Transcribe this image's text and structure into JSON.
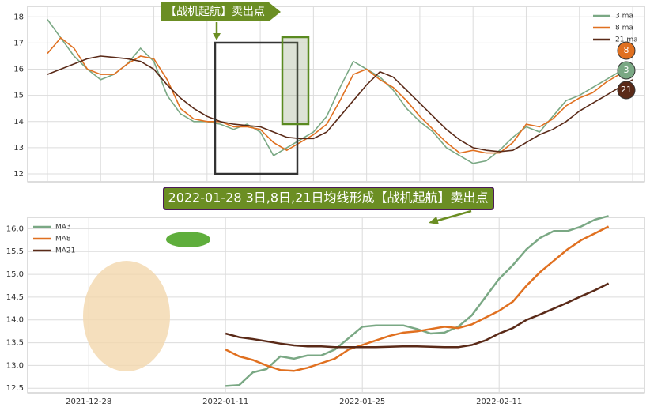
{
  "chart_data": [
    {
      "type": "line",
      "annotation": "【战机起航】卖出点",
      "badges": [
        "8",
        "3",
        "21"
      ],
      "categories": [
        null,
        null,
        null,
        null,
        null,
        null,
        null,
        null,
        null,
        null,
        null,
        null,
        null,
        null,
        null,
        null,
        null,
        null,
        null,
        null,
        null,
        null,
        null,
        null,
        null,
        null,
        null,
        null,
        null,
        null,
        null,
        null,
        null,
        null,
        null,
        null,
        null,
        null,
        null,
        null,
        null,
        null,
        null,
        null,
        null
      ],
      "series": [
        {
          "name": "3 ma",
          "color": "#7aa884",
          "values": [
            17.9,
            17.2,
            16.5,
            16.0,
            15.6,
            15.8,
            16.2,
            16.8,
            16.3,
            15.0,
            14.3,
            14.0,
            14.0,
            13.9,
            13.7,
            13.9,
            13.6,
            12.7,
            13.0,
            13.3,
            13.6,
            14.2,
            15.3,
            16.3,
            16.0,
            15.7,
            15.2,
            14.5,
            14.0,
            13.6,
            13.0,
            12.7,
            12.4,
            12.5,
            12.9,
            13.4,
            13.8,
            13.6,
            14.2,
            14.8,
            15.0,
            15.3,
            15.6,
            15.9,
            16.0
          ]
        },
        {
          "name": "8 ma",
          "color": "#e07020",
          "values": [
            16.6,
            17.2,
            16.8,
            16.0,
            15.8,
            15.8,
            16.2,
            16.5,
            16.4,
            15.6,
            14.5,
            14.1,
            14.0,
            14.0,
            13.8,
            13.8,
            13.7,
            13.2,
            12.9,
            13.2,
            13.5,
            13.9,
            14.8,
            15.8,
            16.0,
            15.6,
            15.3,
            14.8,
            14.2,
            13.7,
            13.2,
            12.8,
            12.9,
            12.8,
            12.8,
            13.2,
            13.9,
            13.8,
            14.1,
            14.6,
            14.9,
            15.1,
            15.5,
            15.8,
            15.9
          ]
        },
        {
          "name": "21 ma",
          "color": "#5a2a18",
          "values": [
            15.8,
            16.0,
            16.2,
            16.4,
            16.5,
            16.45,
            16.4,
            16.3,
            16.0,
            15.4,
            14.9,
            14.5,
            14.2,
            14.0,
            13.9,
            13.85,
            13.8,
            13.6,
            13.4,
            13.35,
            13.35,
            13.6,
            14.2,
            14.8,
            15.4,
            15.9,
            15.7,
            15.2,
            14.7,
            14.2,
            13.7,
            13.3,
            13.0,
            12.9,
            12.85,
            12.9,
            13.2,
            13.5,
            13.7,
            14.0,
            14.4,
            14.7,
            15.0,
            15.3,
            15.6
          ]
        }
      ],
      "ylim": [
        11.7,
        18.4
      ],
      "yticks": [
        12,
        13,
        14,
        15,
        16,
        17,
        18
      ],
      "grid": true,
      "legend": "upper right"
    },
    {
      "type": "line",
      "title": "2022-01-28 3日,8日,21日均线形成【战机起航】卖出点",
      "categories": [
        null,
        null,
        null,
        null,
        "2021-12-28",
        null,
        null,
        null,
        null,
        null,
        null,
        null,
        null,
        null,
        "2022-01-11",
        null,
        null,
        null,
        null,
        null,
        null,
        null,
        null,
        null,
        "2022-01-25",
        null,
        null,
        null,
        null,
        null,
        null,
        null,
        null,
        null,
        "2022-02-11",
        null,
        null,
        null,
        null,
        null,
        null,
        null,
        null,
        null
      ],
      "series": [
        {
          "name": "MA3",
          "color": "#7aa884",
          "values": [
            null,
            null,
            null,
            null,
            null,
            null,
            null,
            null,
            null,
            null,
            null,
            null,
            null,
            null,
            12.55,
            12.57,
            12.85,
            12.92,
            13.2,
            13.15,
            13.22,
            13.22,
            13.35,
            13.6,
            13.85,
            13.88,
            13.88,
            13.88,
            13.8,
            13.7,
            13.72,
            13.85,
            14.1,
            14.5,
            14.9,
            15.2,
            15.55,
            15.8,
            15.95,
            15.95,
            16.05,
            16.2,
            16.28,
            null
          ]
        },
        {
          "name": "MA8",
          "color": "#e07020",
          "values": [
            null,
            null,
            null,
            null,
            null,
            null,
            null,
            null,
            null,
            null,
            null,
            null,
            null,
            null,
            13.35,
            13.2,
            13.12,
            13.0,
            12.9,
            12.88,
            12.95,
            13.05,
            13.15,
            13.35,
            13.45,
            13.55,
            13.65,
            13.72,
            13.75,
            13.8,
            13.85,
            13.82,
            13.9,
            14.05,
            14.2,
            14.4,
            14.75,
            15.05,
            15.3,
            15.55,
            15.75,
            15.9,
            16.05,
            null
          ]
        },
        {
          "name": "MA21",
          "color": "#5a2a18",
          "values": [
            null,
            null,
            null,
            null,
            null,
            null,
            null,
            null,
            null,
            null,
            null,
            null,
            null,
            null,
            13.7,
            13.62,
            13.58,
            13.53,
            13.48,
            13.44,
            13.42,
            13.42,
            13.4,
            13.4,
            13.4,
            13.4,
            13.41,
            13.42,
            13.42,
            13.41,
            13.4,
            13.4,
            13.45,
            13.55,
            13.7,
            13.82,
            14.0,
            14.12,
            14.25,
            14.38,
            14.52,
            14.65,
            14.8,
            null
          ]
        }
      ],
      "ylim": [
        12.4,
        16.25
      ],
      "yticks": [
        12.5,
        {
          "value": 13,
          "label": "13.0"
        },
        13.5,
        {
          "value": 14,
          "label": "14.0"
        },
        14.5,
        {
          "value": 15,
          "label": "15.0"
        },
        15.5,
        {
          "value": 16,
          "label": "16.0"
        }
      ],
      "grid": true,
      "legend": "upper left"
    }
  ]
}
